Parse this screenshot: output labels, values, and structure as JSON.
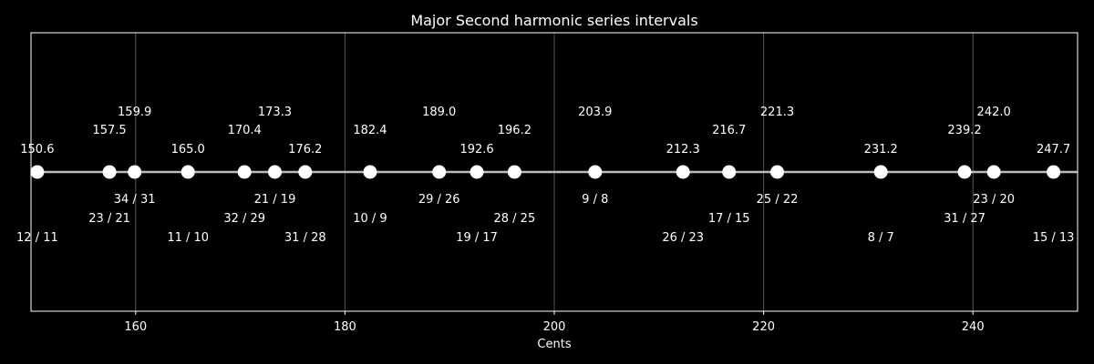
{
  "chart_data": {
    "type": "scatter",
    "title": "Major Second harmonic series intervals",
    "xlabel": "Cents",
    "ylabel": "",
    "xlim": [
      150,
      250
    ],
    "grid": "vertical",
    "colors": {
      "background": "#000000",
      "foreground": "#ffffff",
      "line": "#bbbbbb",
      "grid": "#555555"
    },
    "xticks": [
      160,
      180,
      200,
      220,
      240
    ],
    "xtick_labels": [
      "160",
      "180",
      "200",
      "220",
      "240"
    ],
    "points": [
      {
        "cents": 150.6,
        "cents_label": "150.6",
        "ratio": "12 / 11"
      },
      {
        "cents": 157.5,
        "cents_label": "157.5",
        "ratio": "23 / 21"
      },
      {
        "cents": 159.9,
        "cents_label": "159.9",
        "ratio": "34 / 31"
      },
      {
        "cents": 165.0,
        "cents_label": "165.0",
        "ratio": "11 / 10"
      },
      {
        "cents": 170.4,
        "cents_label": "170.4",
        "ratio": "32 / 29"
      },
      {
        "cents": 173.3,
        "cents_label": "173.3",
        "ratio": "21 / 19"
      },
      {
        "cents": 176.2,
        "cents_label": "176.2",
        "ratio": "31 / 28"
      },
      {
        "cents": 182.4,
        "cents_label": "182.4",
        "ratio": "10 / 9"
      },
      {
        "cents": 189.0,
        "cents_label": "189.0",
        "ratio": "29 / 26"
      },
      {
        "cents": 192.6,
        "cents_label": "192.6",
        "ratio": "19 / 17"
      },
      {
        "cents": 196.2,
        "cents_label": "196.2",
        "ratio": "28 / 25"
      },
      {
        "cents": 203.9,
        "cents_label": "203.9",
        "ratio": "9 / 8"
      },
      {
        "cents": 212.3,
        "cents_label": "212.3",
        "ratio": "26 / 23"
      },
      {
        "cents": 216.7,
        "cents_label": "216.7",
        "ratio": "17 / 15"
      },
      {
        "cents": 221.3,
        "cents_label": "221.3",
        "ratio": "25 / 22"
      },
      {
        "cents": 231.2,
        "cents_label": "231.2",
        "ratio": "8 / 7"
      },
      {
        "cents": 239.2,
        "cents_label": "239.2",
        "ratio": "31 / 27"
      },
      {
        "cents": 242.0,
        "cents_label": "242.0",
        "ratio": "23 / 20"
      },
      {
        "cents": 247.7,
        "cents_label": "247.7",
        "ratio": "15 / 13"
      }
    ]
  }
}
